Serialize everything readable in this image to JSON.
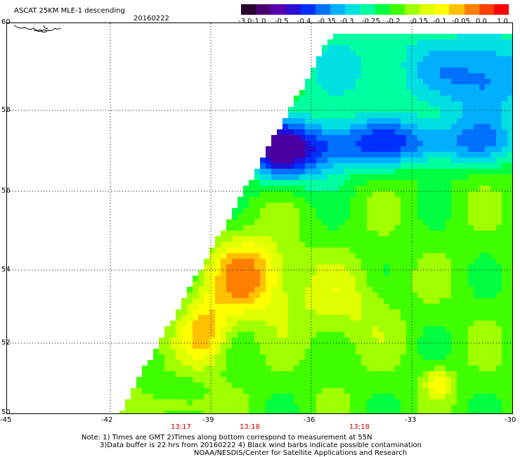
{
  "header": {
    "title": "ASCAT 25KM MLE-1 descending",
    "date": "20160222"
  },
  "colorbar": {
    "labels": [
      "-3.0",
      "-1.0",
      "-0.5",
      "-0.4",
      "-0.35",
      "-0.3",
      "-0.25",
      "-0.2",
      "-0.15",
      "-0.1",
      "-0.05",
      "0.0",
      "1.0"
    ],
    "colors": [
      "#2a0030",
      "#4a0070",
      "#5a00b0",
      "#2a10d0",
      "#0030ff",
      "#0070ff",
      "#00b0ff",
      "#00e0e0",
      "#00ffa0",
      "#00ff40",
      "#40ff00",
      "#a0ff00",
      "#e0ff00",
      "#ffff00",
      "#ffc000",
      "#ff8000",
      "#ff4000",
      "#ff0000"
    ]
  },
  "map": {
    "lat_labels": [
      "60",
      "58",
      "56",
      "54",
      "52",
      "50"
    ],
    "lon_labels": [
      "-45",
      "-42",
      "-39",
      "-36",
      "-33",
      "-30"
    ],
    "time_labels": [
      "13:17",
      "13:18",
      "13:18"
    ]
  },
  "footer": {
    "line1": "Note: 1) Times are GMT 2)Times along bottom correspond to measurement at 55N",
    "line2": "3)Data buffer is 22 hrs from 20160222 4) Black wind barbs indicate possible contamination",
    "line3": "NOAA/NESDIS/Center for Satellite Applications and Research"
  },
  "colors": {
    "frame": "#000000",
    "grid": "#000000",
    "time_label": "#cc0000"
  }
}
